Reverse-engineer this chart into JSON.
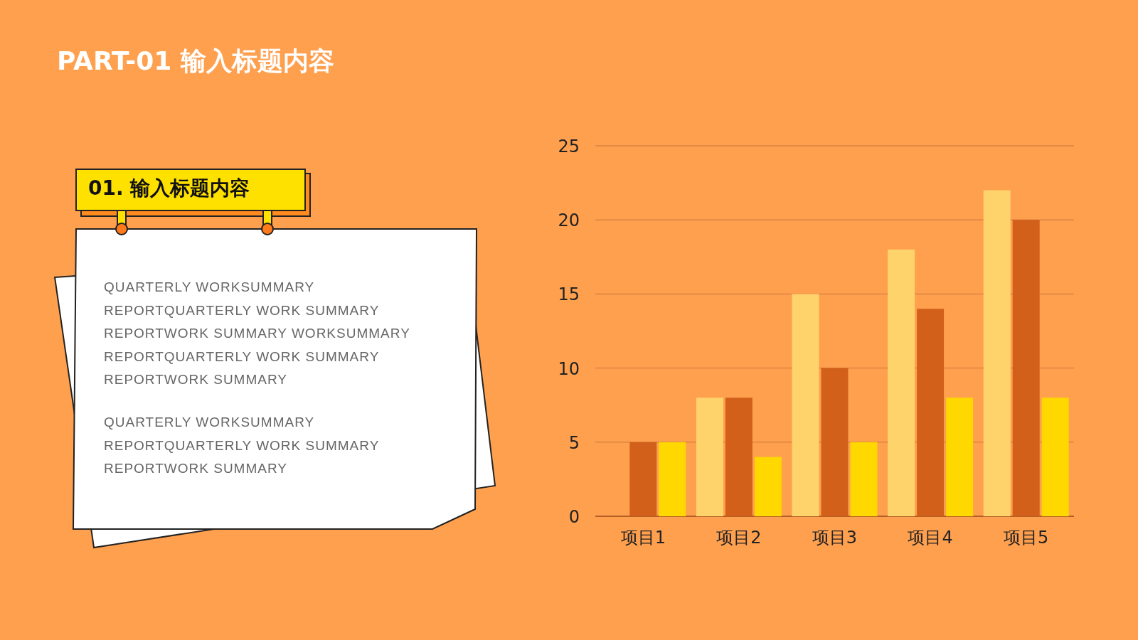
{
  "chart_data": {
    "type": "bar",
    "title": "PART-01 输入标题内容",
    "subtitle": "01. 输入标题内容",
    "annotations": [
      "QUARTERLY WORKSUMMARY REPORTQUARTERLY WORK SUMMARY REPORTWORK SUMMARY  WORKSUMMARY REPORTQUARTERLY WORK SUMMARY REPORTWORK SUMMARY",
      "QUARTERLY WORKSUMMARY REPORTQUARTERLY WORK SUMMARY REPORTWORK SUMMARY"
    ],
    "categories": [
      "项目1",
      "项目2",
      "项目3",
      "项目4",
      "项目5"
    ],
    "series": [
      {
        "color": "#ffd36b",
        "values": [
          0,
          8,
          15,
          18,
          22
        ]
      },
      {
        "color": "#d2601a",
        "values": [
          5,
          8,
          10,
          14,
          20
        ]
      },
      {
        "color": "#ffd800",
        "values": [
          5,
          4,
          5,
          8,
          8
        ]
      }
    ],
    "ylim": [
      0,
      25
    ],
    "yticks": [
      0,
      5,
      10,
      15,
      20,
      25
    ],
    "grid": "y"
  }
}
